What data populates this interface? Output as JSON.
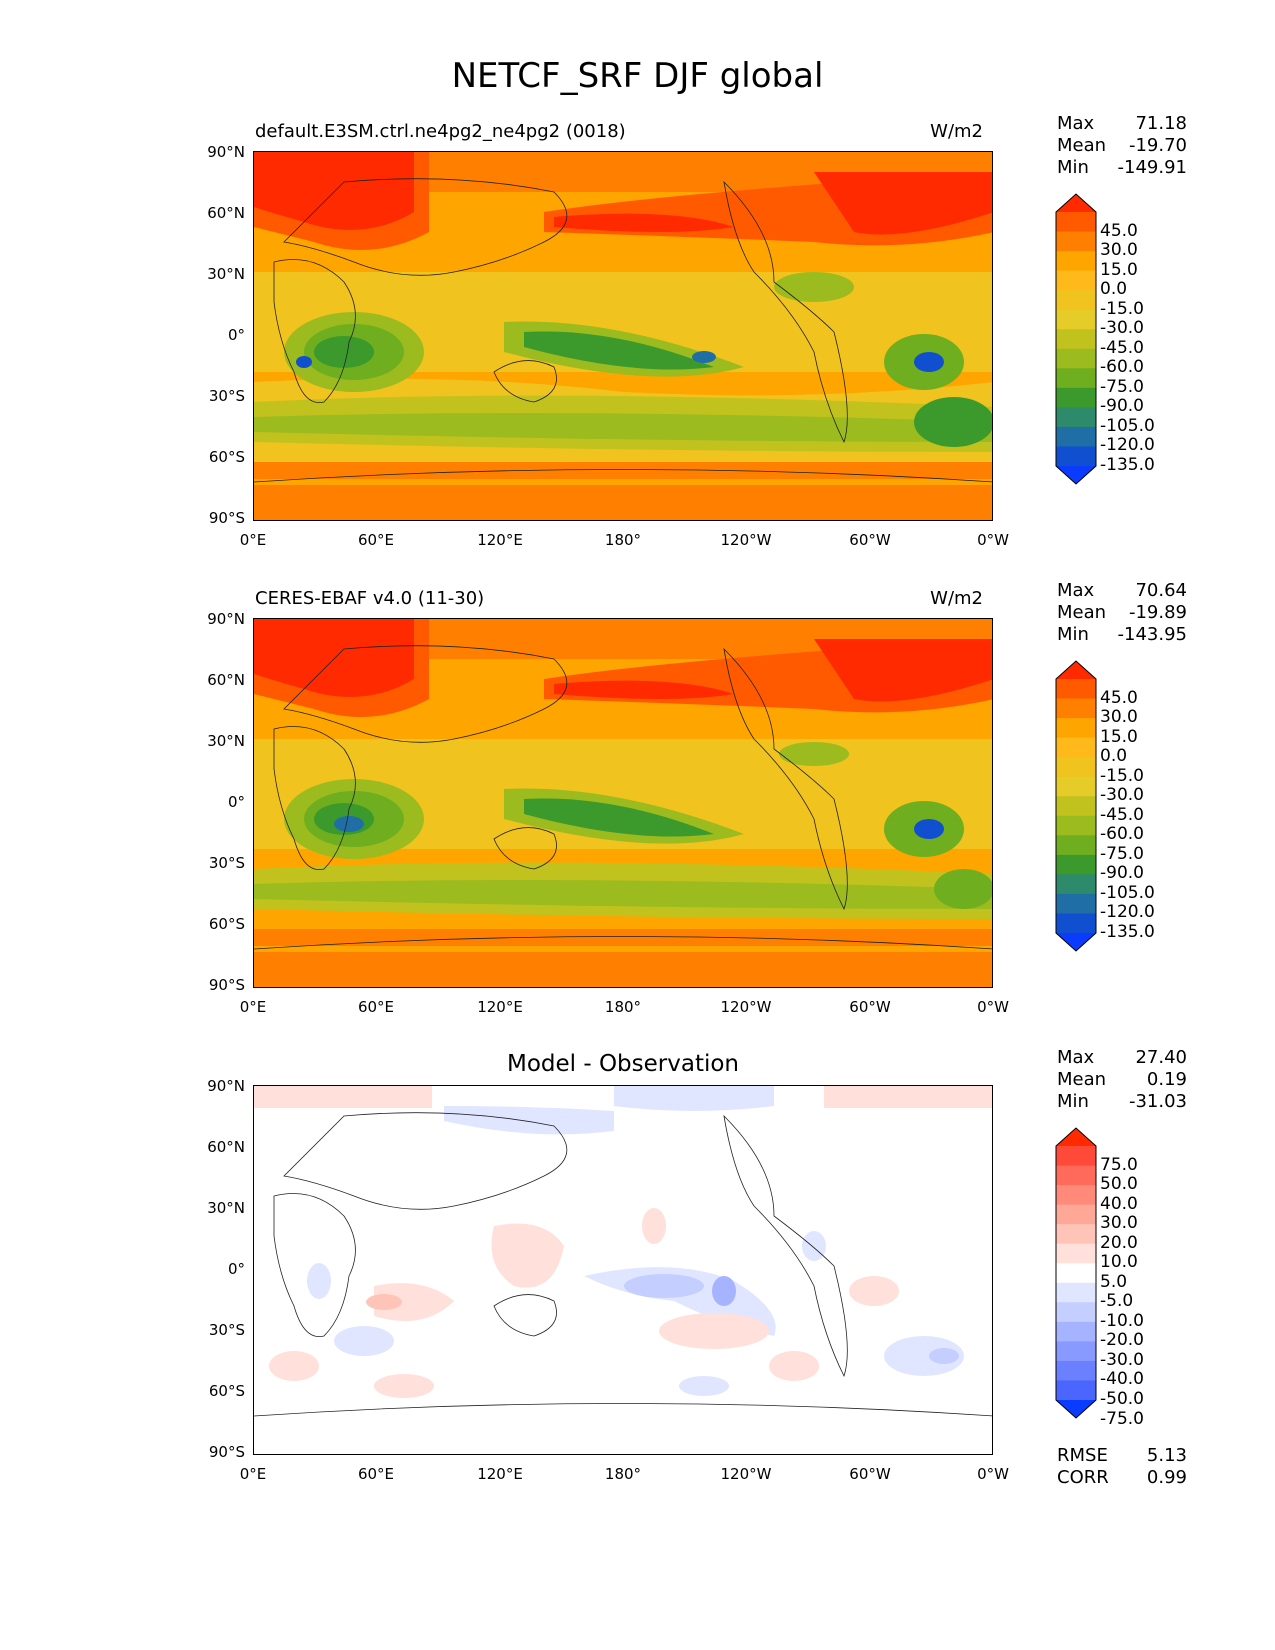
{
  "figure_title": "NETCF_SRF DJF global",
  "x_ticks": [
    "0°E",
    "60°E",
    "120°E",
    "180°",
    "120°W",
    "60°W",
    "0°W"
  ],
  "y_ticks": [
    "90°N",
    "60°N",
    "30°N",
    "0°",
    "30°S",
    "60°S",
    "90°S"
  ],
  "panels": [
    {
      "title_left": "default.E3SM.ctrl.ne4pg2_ne4pg2 (0018)",
      "title_right": "W/m2",
      "stats": {
        "max_label": "Max",
        "max": "71.18",
        "mean_label": "Mean",
        "mean": "-19.70",
        "min_label": "Min",
        "min": "-149.91"
      },
      "colorbar": {
        "levels": [
          "45.0",
          "30.0",
          "15.0",
          "0.0",
          "-15.0",
          "-30.0",
          "-45.0",
          "-60.0",
          "-75.0",
          "-90.0",
          "-105.0",
          "-120.0",
          "-135.0"
        ],
        "colors": [
          "#ff2a00",
          "#ff5a00",
          "#ff8000",
          "#ffa500",
          "#ffb91a",
          "#f0c31e",
          "#e6cc28",
          "#c2c21e",
          "#9cbb1e",
          "#6fae1e",
          "#3c9a2c",
          "#2d8a6a",
          "#1f6fa6",
          "#1050d0",
          "#0a3cff"
        ]
      }
    },
    {
      "title_left": "CERES-EBAF v4.0 (11-30)",
      "title_right": "W/m2",
      "stats": {
        "max_label": "Max",
        "max": "70.64",
        "mean_label": "Mean",
        "mean": "-19.89",
        "min_label": "Min",
        "min": "-143.95"
      },
      "colorbar": {
        "levels": [
          "45.0",
          "30.0",
          "15.0",
          "0.0",
          "-15.0",
          "-30.0",
          "-45.0",
          "-60.0",
          "-75.0",
          "-90.0",
          "-105.0",
          "-120.0",
          "-135.0"
        ],
        "colors": [
          "#ff2a00",
          "#ff5a00",
          "#ff8000",
          "#ffa500",
          "#ffb91a",
          "#f0c31e",
          "#e6cc28",
          "#c2c21e",
          "#9cbb1e",
          "#6fae1e",
          "#3c9a2c",
          "#2d8a6a",
          "#1f6fa6",
          "#1050d0",
          "#0a3cff"
        ]
      }
    },
    {
      "title_center": "Model - Observation",
      "stats": {
        "max_label": "Max",
        "max": "27.40",
        "mean_label": "Mean",
        "mean": "0.19",
        "min_label": "Min",
        "min": "-31.03"
      },
      "colorbar": {
        "levels": [
          "75.0",
          "50.0",
          "40.0",
          "30.0",
          "20.0",
          "10.0",
          "5.0",
          "-5.0",
          "-10.0",
          "-20.0",
          "-30.0",
          "-40.0",
          "-50.0",
          "-75.0"
        ],
        "colors": [
          "#ff2a00",
          "#ff4a3a",
          "#ff6a5a",
          "#ff8a7a",
          "#ffa898",
          "#ffc4b8",
          "#ffe0da",
          "#ffffff",
          "#e0e6ff",
          "#c4ceff",
          "#a6b4ff",
          "#889aff",
          "#6a80ff",
          "#4a66ff",
          "#0a3cff"
        ]
      },
      "rmse_label": "RMSE",
      "rmse": "5.13",
      "corr_label": "CORR",
      "corr": "0.99"
    }
  ]
}
